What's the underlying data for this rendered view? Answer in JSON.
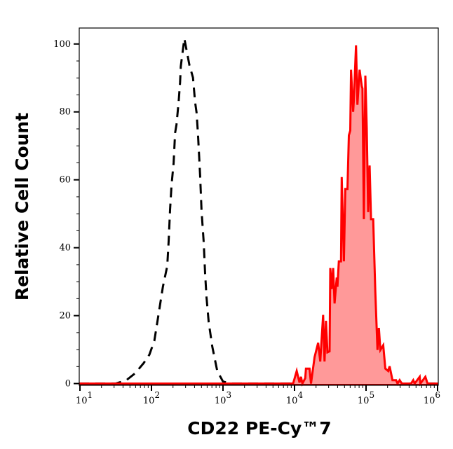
{
  "chart_data": {
    "type": "area",
    "title": "",
    "xlabel": "CD22 PE-Cy™7",
    "ylabel": "Relative Cell Count",
    "x_scale": "log",
    "xlim_log10": [
      0.99,
      6.01
    ],
    "ylim": [
      -0.5,
      104.7
    ],
    "x_ticks": [
      {
        "exp": 1,
        "base": "10",
        "sup": "1"
      },
      {
        "exp": 2,
        "base": "10",
        "sup": "2"
      },
      {
        "exp": 3,
        "base": "10",
        "sup": "3"
      },
      {
        "exp": 4,
        "base": "10",
        "sup": "4"
      },
      {
        "exp": 5,
        "base": "10",
        "sup": "5"
      },
      {
        "exp": 6,
        "base": "10",
        "sup": "6"
      }
    ],
    "y_ticks": [
      "0",
      "20",
      "40",
      "60",
      "80",
      "100"
    ],
    "grid": false,
    "legend": "none",
    "series": [
      {
        "style": "dashed",
        "color": "#000000",
        "fill": "none",
        "log10_x": [
          0.99,
          1.5,
          1.65,
          1.77,
          1.89,
          1.97,
          2.04,
          2.09,
          2.16,
          2.22,
          2.24,
          2.26,
          2.28,
          2.31,
          2.33,
          2.35,
          2.38,
          2.4,
          2.41,
          2.46,
          2.53,
          2.58,
          2.61,
          2.63,
          2.65,
          2.68,
          2.7,
          2.73,
          2.75,
          2.77,
          2.8,
          2.85,
          2.92,
          3.0,
          3.12,
          6.01
        ],
        "y": [
          0,
          0,
          1,
          3,
          6,
          8.5,
          12.6,
          19.2,
          28.5,
          34.6,
          41.9,
          51.1,
          58.4,
          65,
          73.8,
          76.3,
          83.1,
          88.7,
          93.4,
          101.6,
          93.8,
          90.1,
          82.9,
          79.8,
          73.6,
          61.2,
          50.9,
          41.6,
          32.4,
          25.4,
          18.1,
          10.9,
          3.7,
          0.6,
          0,
          0
        ]
      },
      {
        "style": "solid",
        "color": "#ff0000",
        "fill": "#ff9999",
        "log10_x": [
          0.99,
          3.98,
          4.03,
          4.07,
          4.09,
          4.11,
          4.15,
          4.16,
          4.21,
          4.23,
          4.28,
          4.33,
          4.36,
          4.4,
          4.42,
          4.44,
          4.46,
          4.49,
          4.5,
          4.52,
          4.54,
          4.56,
          4.59,
          4.6,
          4.62,
          4.65,
          4.66,
          4.69,
          4.71,
          4.74,
          4.76,
          4.78,
          4.79,
          4.82,
          4.83,
          4.86,
          4.88,
          4.91,
          4.94,
          4.95,
          4.97,
          4.99,
          5.01,
          5.03,
          5.05,
          5.07,
          5.1,
          5.13,
          5.16,
          5.18,
          5.2,
          5.24,
          5.27,
          5.31,
          5.33,
          5.37,
          5.42,
          5.44,
          5.47,
          5.5,
          5.63,
          5.66,
          5.68,
          5.75,
          5.76,
          5.83,
          5.86,
          6.01
        ],
        "y": [
          0,
          0,
          3.7,
          0.3,
          2.0,
          0,
          1.6,
          4.4,
          4.4,
          0,
          7.8,
          12.0,
          6.5,
          20.2,
          6.5,
          18.5,
          9.2,
          9.5,
          34.0,
          27.8,
          34.0,
          23.6,
          31.2,
          28.5,
          36.0,
          36.0,
          60.8,
          36.0,
          57.3,
          57.3,
          73.1,
          74.5,
          92.4,
          80.0,
          83.4,
          99.6,
          82.1,
          92.4,
          87.6,
          86.9,
          48.4,
          90.7,
          75.2,
          50.5,
          64.2,
          48.4,
          48.4,
          27.1,
          9.9,
          16.4,
          9.9,
          11.3,
          4.4,
          3.7,
          5.1,
          1.0,
          1.0,
          0,
          1.0,
          0,
          0,
          1.0,
          0,
          2,
          0,
          2,
          0,
          0
        ]
      }
    ]
  }
}
